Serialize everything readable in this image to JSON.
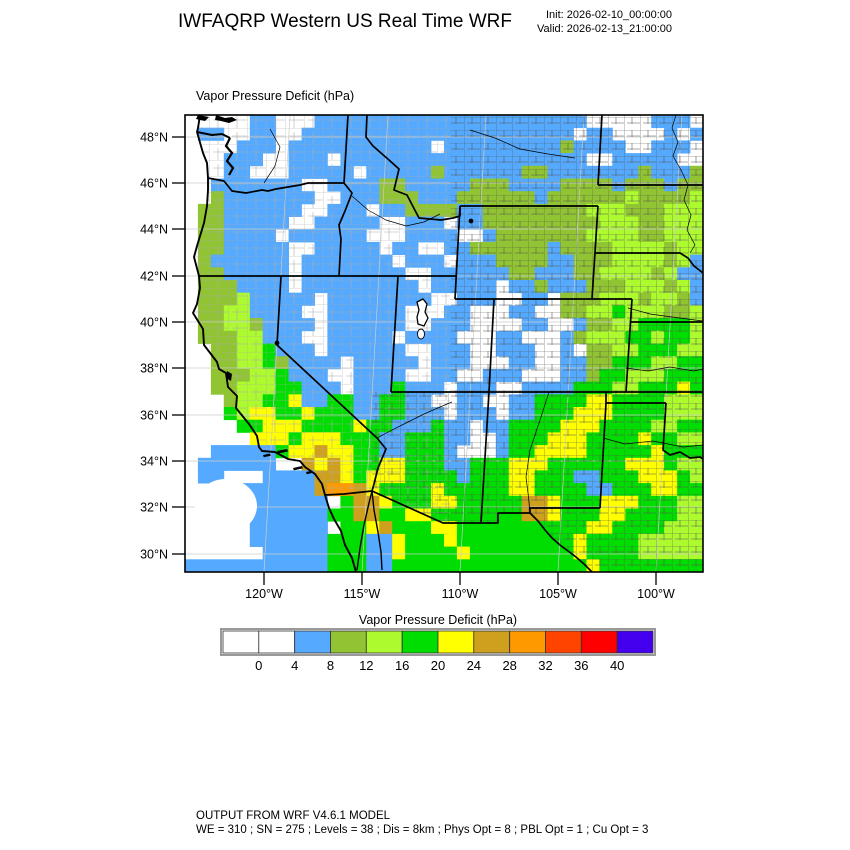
{
  "header": {
    "title": "IWFAQRP Western US Real Time WRF",
    "init_label": "Init: 2026-02-10_00:00:00",
    "valid_label": "Valid: 2026-02-13_21:00:00"
  },
  "map_label": "Vapor Pressure Deficit   (hPa)",
  "footer": {
    "line1": "OUTPUT FROM WRF V4.6.1 MODEL",
    "line2": "WE = 310 ; SN = 275 ; Levels = 38 ; Dis = 8km ; Phys Opt = 8 ; PBL Opt = 1 ; Cu Opt = 3"
  },
  "chart_data": {
    "type": "heatmap",
    "title": "Vapor Pressure Deficit  (hPa)",
    "variable": "Vapor Pressure Deficit",
    "units": "hPa",
    "lat_tick_labels": [
      "48°N",
      "46°N",
      "44°N",
      "42°N",
      "40°N",
      "38°N",
      "36°N",
      "34°N",
      "32°N",
      "30°N"
    ],
    "lon_tick_labels": [
      "120°W",
      "115°W",
      "110°W",
      "105°W",
      "100°W"
    ],
    "lat_range": [
      29.2,
      49.0
    ],
    "lon_range": [
      -124.0,
      -97.6
    ],
    "grid": {
      "cols": 40,
      "rows": 36
    },
    "legend": {
      "title": "Vapor Pressure Deficit  (hPa)",
      "tick_labels": [
        "0",
        "4",
        "8",
        "12",
        "16",
        "20",
        "24",
        "28",
        "32",
        "36",
        "40"
      ],
      "levels": [
        0,
        4,
        8,
        12,
        16,
        20,
        24,
        28,
        32,
        36,
        40
      ],
      "colors": [
        "#FFFFFF",
        "#FFFFFF",
        "#55AAFF",
        "#90C432",
        "#ADFB2F",
        "#00DD00",
        "#FFFF00",
        "#CFA01D",
        "#FF9900",
        "#FF4400",
        "#FF0000",
        "#4400EE"
      ]
    },
    "palette": {
      ".": "#FFFFFF",
      "b": "#55AAFF",
      "o": "#90C432",
      "l": "#ADFB2F",
      "g": "#00DD00",
      "y": "#FFFF00",
      "d": "#CFA01D",
      "r": "#FF9900"
    },
    "field_rows": [
      "5.2b3.21b5.3b1.",
      "1.2b2.2b2.21b1.2b4.1b1.1b",
      "4.3b1.11b1.9b1o4b2.3b1.",
      "3.3b2.3b1.19b2.5b2.",
      "3.2b3.5b1.5b1o6b2o7b1o3b1o",
      "2.7b2.4b2o5b3o4b4o1b3o1b2o",
      "2.1o7b2.3b3o3b6o1b6o1l4o1l",
      "1.2o6b2.3b1.2b4o2b8o3l3o3l",
      "1.2o5b2.5b2.3b1.2b9o3l2o3l",
      "1.2o4b1.6b3.4b2.1b7o4l2o3l",
      "1.2o5b2.5b1.2b2.2b6o1b4o4l1o2l",
      "1.1o6b1.7b1.3b1.3b4o2b3o4l1o1l1b",
      "1.2o5b1.8b2.6b2o3b2o4l1o1l1b",
      "1.3o4b1.9b1.5b1.2b1o3b3o3l1o1l1b",
      "1.3o1l5b1.8b2.3b2.2b1.3o3l1o2l1o1b",
      "1.2o2l4b2.6b3.2b3.2b2.2o2l1g3l2o1l",
      "1.2o2l1o4b1.6b2.3b4.2b2.1b2o2l4g2l",
      "1.3o2l3b2.5b1.4b3.2b3.1b1o3l2g1l2g1l",
      "2.2o2l1g3b1.6b2.3b2.3b2.1b1.2o2l3g2l",
      "2.2o2l1g1o4b1.5b1.3b3.2b2.2b2o3g2l2g",
      "2.3o2l1g3b2.4b2.2b2.3b3.2b1o2g3l3g",
      "2.2o3l2g3b1.3b1g3b1.3b2.4b3g2l3g1y1g",
      "3.1o2l2g1y2b2g2b2g2b2.2b2.2b4g2y4g3l",
      "3.1g1l2y2g1y3g2b2g3b1.3b1.2b3g3y4g3l",
      "4.2g3y4g1y2g3b1g2b1.2b4g3y4g2l2g",
      "5.3y1g3y3g2b3g2b2.1b3g3y4g1y2g2l",
      "2.5b1g2y1d2y2g2b3g1b3.1b2g4y5g1y3g",
      "1.6b2.1d1y1d1y2g2y3g2b3g3y6g3y1g2l",
      "1.2b3.4b2d1y1g3y4g1b3g2y3g2b3g3y1g1l",
      "2.8b1d2r1d1y4g1y5g2y4g2b3g2y2g",
      "3.8b1.1g2d1y3g2y5g2d1y3g3y3g2l",
      "4.7b2g2d2g2y7g2d1y3g2y4g2l",
      "5.6b1.2g1y1d3g2y10g2y4g3l",
      "5.6b3g2b1y3g1y9g1y4g4l",
      "6.5b3g2b1y4g1y8g1y4g4l",
      "11b3g2b15g1y8g"
    ]
  }
}
